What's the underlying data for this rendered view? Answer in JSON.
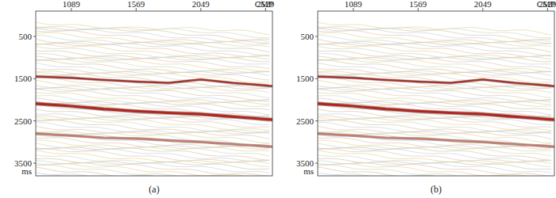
{
  "chart_data": [
    {
      "type": "line",
      "title": "(a)",
      "x_label": "CMP",
      "y_label": "ms",
      "x": [
        825,
        1089,
        1329,
        1569,
        1809,
        2049,
        2289,
        2529,
        2580
      ],
      "series": [
        {
          "color": "#b3261e",
          "values": [
            2090,
            2150,
            2220,
            2270,
            2310,
            2340,
            2400,
            2460,
            2470
          ]
        },
        {
          "color": "#a8322a",
          "values": [
            1450,
            1480,
            1530,
            1570,
            1600,
            1520,
            1600,
            1660,
            1680
          ]
        },
        {
          "color": "#c77b6a",
          "values": [
            2800,
            2850,
            2900,
            2920,
            2960,
            3000,
            3050,
            3100,
            3110
          ]
        }
      ],
      "xlim": [
        825,
        2580
      ],
      "ylim": [
        -100,
        3800
      ],
      "xticks": [
        1089,
        1569,
        2049,
        2529
      ],
      "yticks": [
        500,
        1500,
        2500,
        3500
      ]
    },
    {
      "type": "line",
      "title": "(b)",
      "x_label": "CMP",
      "y_label": "ms",
      "x": [
        825,
        1089,
        1329,
        1569,
        1809,
        2049,
        2289,
        2529,
        2580
      ],
      "series": [
        {
          "color": "#b3261e",
          "values": [
            2090,
            2150,
            2220,
            2270,
            2310,
            2340,
            2400,
            2460,
            2470
          ]
        },
        {
          "color": "#a8322a",
          "values": [
            1450,
            1480,
            1530,
            1570,
            1600,
            1520,
            1600,
            1660,
            1680
          ]
        },
        {
          "color": "#c77b6a",
          "values": [
            2800,
            2850,
            2900,
            2920,
            2960,
            3000,
            3050,
            3100,
            3110
          ]
        }
      ],
      "xlim": [
        825,
        2580
      ],
      "ylim": [
        -100,
        3800
      ],
      "xticks": [
        1089,
        1569,
        2049,
        2529
      ],
      "yticks": [
        500,
        1500,
        2500,
        3500
      ]
    }
  ]
}
